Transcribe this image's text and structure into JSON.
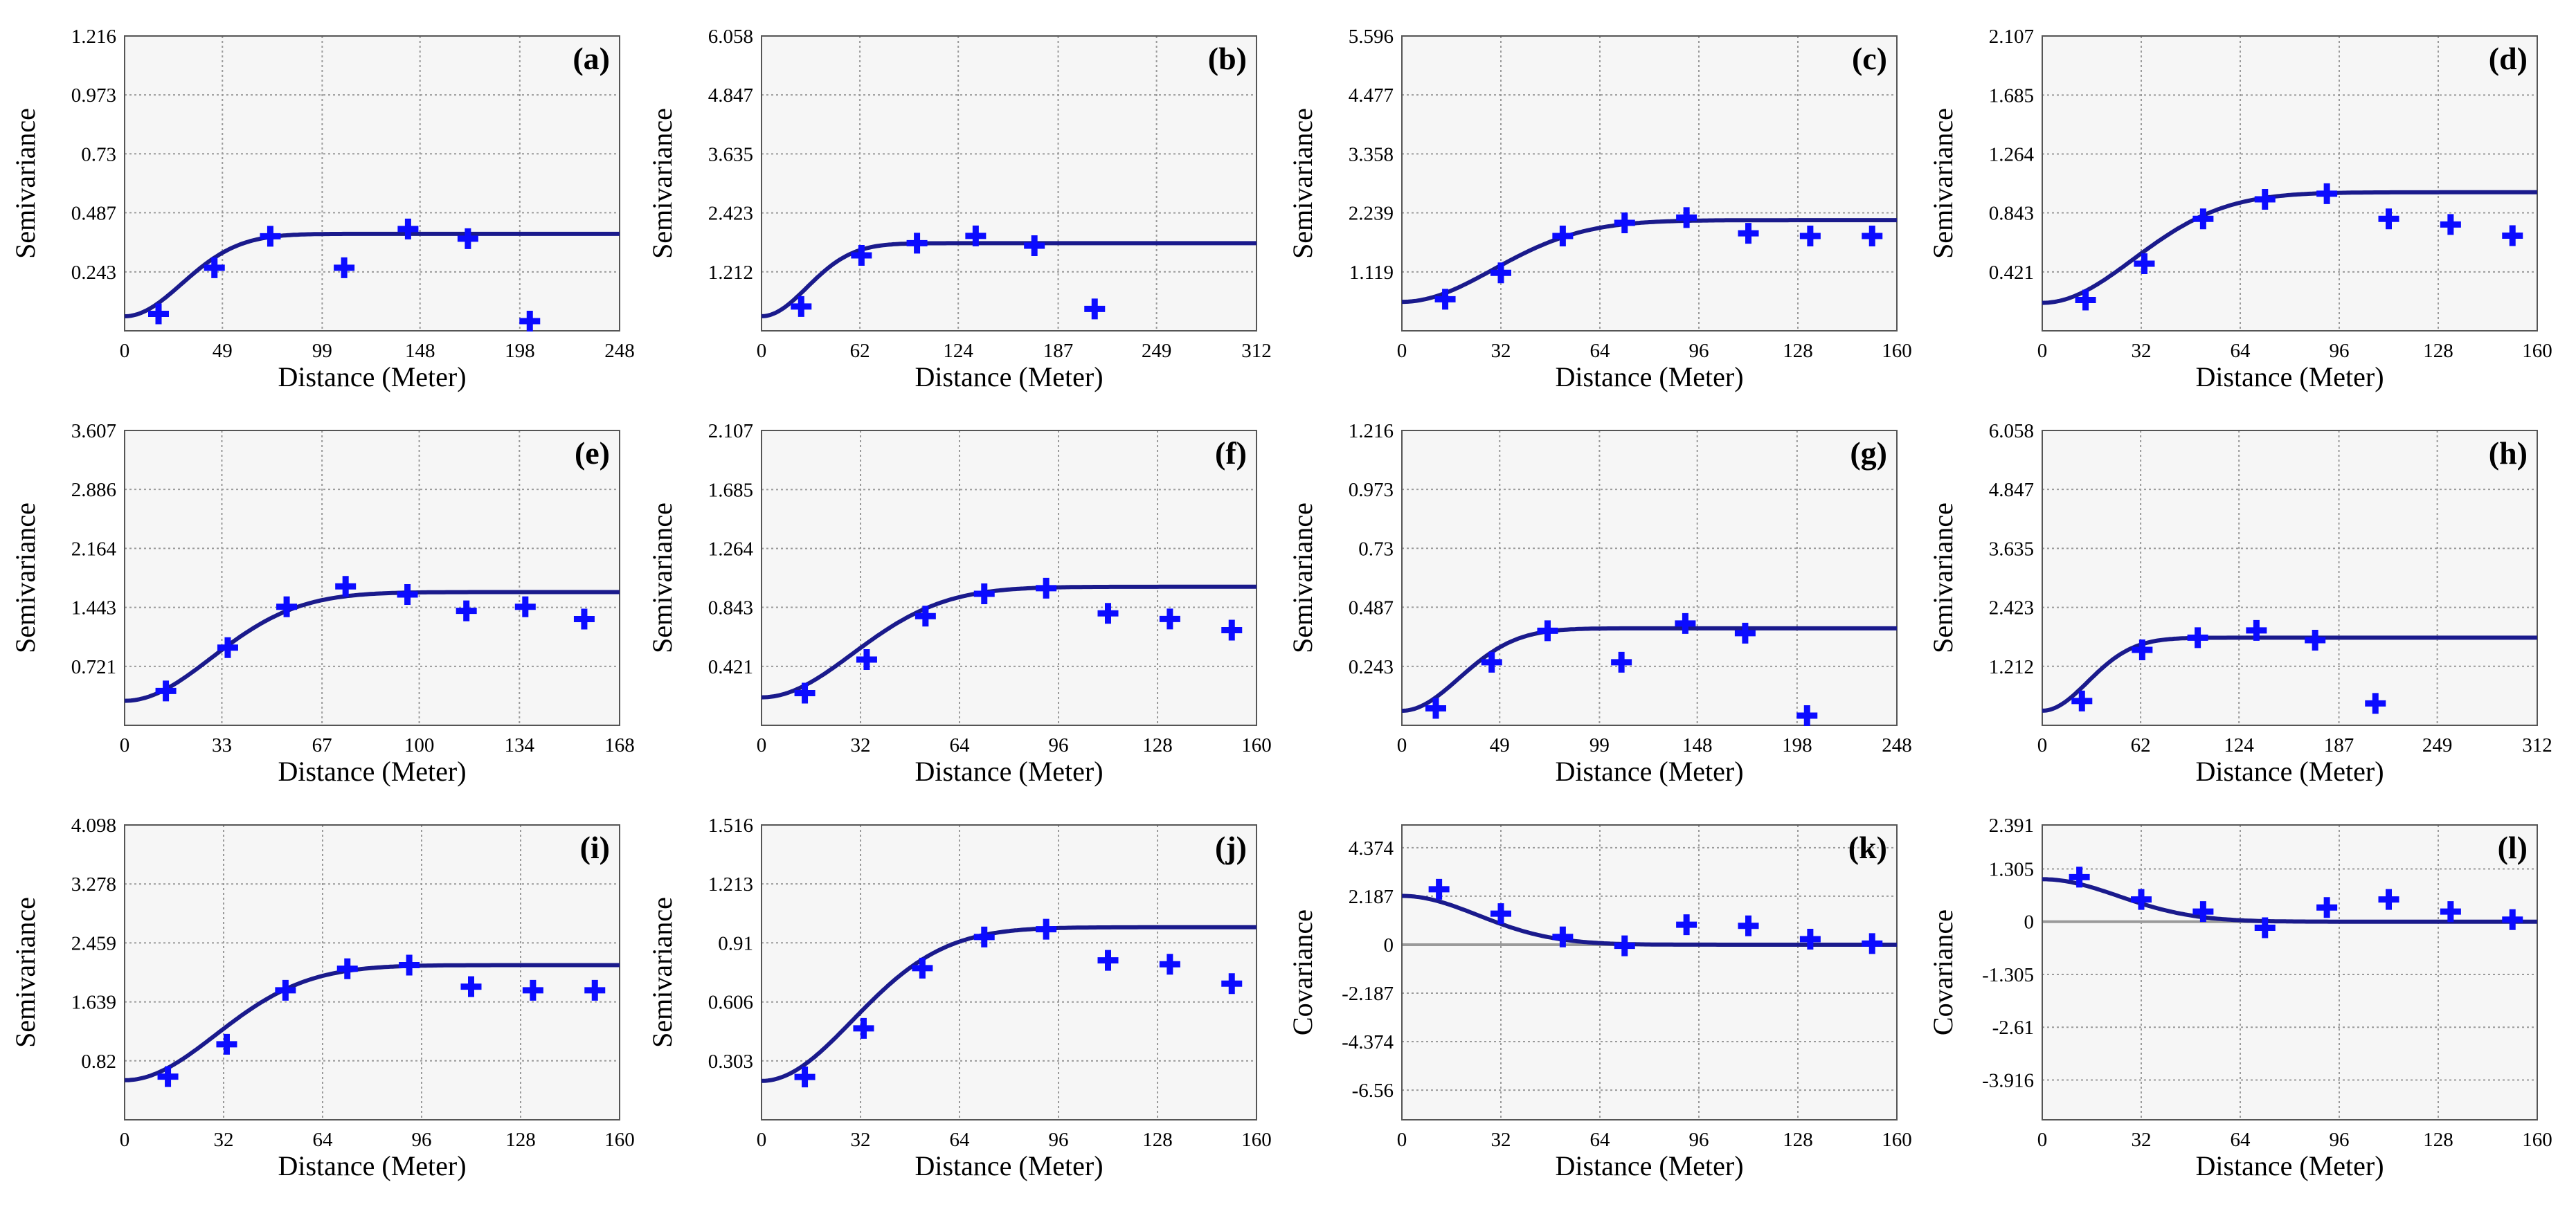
{
  "colors": {
    "model_line": "#1a1a8c",
    "points": "#0b0bff",
    "grid": "#9a9a9a",
    "plot_bg": "#f6f6f6",
    "zero_line": "#9a9a9a"
  },
  "chart_data": [
    {
      "panel": "(a)",
      "type": "scatter",
      "model": "gaussian",
      "xlabel": "Distance (Meter)",
      "ylabel": "Semivariance",
      "xticks": [
        "0",
        "49",
        "99",
        "148",
        "198",
        "248"
      ],
      "xlim": [
        0,
        248
      ],
      "yticks": [
        "0.243",
        "0.487",
        "0.73",
        "0.973",
        "1.216"
      ],
      "ylim": [
        0,
        1.216
      ],
      "grid": true,
      "nugget": 0.06,
      "sill": 0.4,
      "range": 70,
      "points": [
        [
          17,
          0.07
        ],
        [
          45,
          0.26
        ],
        [
          73,
          0.39
        ],
        [
          110,
          0.26
        ],
        [
          142,
          0.42
        ],
        [
          172,
          0.38
        ],
        [
          203,
          0.04
        ]
      ]
    },
    {
      "panel": "(b)",
      "type": "scatter",
      "model": "gaussian",
      "xlabel": "Distance (Meter)",
      "ylabel": "Semivariance",
      "xticks": [
        "0",
        "62",
        "124",
        "187",
        "249",
        "312"
      ],
      "xlim": [
        0,
        312
      ],
      "yticks": [
        "1.212",
        "2.423",
        "3.635",
        "4.847",
        "6.058"
      ],
      "ylim": [
        0,
        6.058
      ],
      "grid": true,
      "nugget": 0.3,
      "sill": 1.8,
      "range": 70,
      "points": [
        [
          25,
          0.5
        ],
        [
          63,
          1.55
        ],
        [
          98,
          1.8
        ],
        [
          135,
          1.95
        ],
        [
          172,
          1.75
        ],
        [
          210,
          0.45
        ]
      ]
    },
    {
      "panel": "(c)",
      "type": "scatter",
      "model": "gaussian",
      "xlabel": "Distance (Meter)",
      "ylabel": "Semivariance",
      "xticks": [
        "0",
        "32",
        "64",
        "96",
        "128",
        "160"
      ],
      "xlim": [
        0,
        160
      ],
      "yticks": [
        "1.119",
        "2.239",
        "3.358",
        "4.477",
        "5.596"
      ],
      "ylim": [
        0,
        5.596
      ],
      "grid": true,
      "nugget": 0.55,
      "sill": 2.1,
      "range": 72,
      "points": [
        [
          14,
          0.6
        ],
        [
          32,
          1.1
        ],
        [
          52,
          1.8
        ],
        [
          72,
          2.05
        ],
        [
          92,
          2.15
        ],
        [
          112,
          1.85
        ],
        [
          132,
          1.8
        ],
        [
          152,
          1.8
        ]
      ]
    },
    {
      "panel": "(d)",
      "type": "scatter",
      "model": "gaussian",
      "xlabel": "Distance (Meter)",
      "ylabel": "Semivariance",
      "xticks": [
        "0",
        "32",
        "64",
        "96",
        "128",
        "160"
      ],
      "xlim": [
        0,
        160
      ],
      "yticks": [
        "0.421",
        "0.843",
        "1.264",
        "1.685",
        "2.107"
      ],
      "ylim": [
        0,
        2.107
      ],
      "grid": true,
      "nugget": 0.2,
      "sill": 0.99,
      "range": 72,
      "points": [
        [
          14,
          0.22
        ],
        [
          33,
          0.48
        ],
        [
          52,
          0.8
        ],
        [
          72,
          0.94
        ],
        [
          92,
          0.98
        ],
        [
          112,
          0.8
        ],
        [
          132,
          0.76
        ],
        [
          152,
          0.68
        ]
      ]
    },
    {
      "panel": "(e)",
      "type": "scatter",
      "model": "gaussian",
      "xlabel": "Distance (Meter)",
      "ylabel": "Semivariance",
      "xticks": [
        "0",
        "33",
        "67",
        "100",
        "134",
        "168"
      ],
      "xlim": [
        0,
        168
      ],
      "yticks": [
        "0.721",
        "1.443",
        "2.164",
        "2.886",
        "3.607"
      ],
      "ylim": [
        0,
        3.607
      ],
      "grid": true,
      "nugget": 0.3,
      "sill": 1.63,
      "range": 72,
      "points": [
        [
          14,
          0.42
        ],
        [
          35,
          0.95
        ],
        [
          55,
          1.45
        ],
        [
          75,
          1.7
        ],
        [
          96,
          1.6
        ],
        [
          116,
          1.4
        ],
        [
          136,
          1.45
        ],
        [
          156,
          1.3
        ]
      ]
    },
    {
      "panel": "(f)",
      "type": "scatter",
      "model": "gaussian",
      "xlabel": "Distance (Meter)",
      "ylabel": "Semivariance",
      "xticks": [
        "0",
        "32",
        "64",
        "96",
        "128",
        "160"
      ],
      "xlim": [
        0,
        160
      ],
      "yticks": [
        "0.421",
        "0.843",
        "1.264",
        "1.685",
        "2.107"
      ],
      "ylim": [
        0,
        2.107
      ],
      "grid": true,
      "nugget": 0.2,
      "sill": 0.99,
      "range": 72,
      "points": [
        [
          14,
          0.23
        ],
        [
          34,
          0.47
        ],
        [
          53,
          0.78
        ],
        [
          72,
          0.94
        ],
        [
          92,
          0.98
        ],
        [
          112,
          0.8
        ],
        [
          132,
          0.76
        ],
        [
          152,
          0.68
        ]
      ]
    },
    {
      "panel": "(g)",
      "type": "scatter",
      "model": "gaussian",
      "xlabel": "Distance (Meter)",
      "ylabel": "Semivariance",
      "xticks": [
        "0",
        "49",
        "99",
        "148",
        "198",
        "248"
      ],
      "xlim": [
        0,
        248
      ],
      "yticks": [
        "0.243",
        "0.487",
        "0.73",
        "0.973",
        "1.216"
      ],
      "ylim": [
        0,
        1.216
      ],
      "grid": true,
      "nugget": 0.06,
      "sill": 0.4,
      "range": 70,
      "points": [
        [
          17,
          0.07
        ],
        [
          45,
          0.26
        ],
        [
          73,
          0.39
        ],
        [
          110,
          0.26
        ],
        [
          142,
          0.42
        ],
        [
          172,
          0.38
        ],
        [
          203,
          0.04
        ]
      ]
    },
    {
      "panel": "(h)",
      "type": "scatter",
      "model": "gaussian",
      "xlabel": "Distance (Meter)",
      "ylabel": "Semivariance",
      "xticks": [
        "0",
        "62",
        "124",
        "187",
        "249",
        "312"
      ],
      "xlim": [
        0,
        312
      ],
      "yticks": [
        "1.212",
        "2.423",
        "3.635",
        "4.847",
        "6.058"
      ],
      "ylim": [
        0,
        6.058
      ],
      "grid": true,
      "nugget": 0.3,
      "sill": 1.8,
      "range": 70,
      "points": [
        [
          25,
          0.5
        ],
        [
          63,
          1.55
        ],
        [
          98,
          1.8
        ],
        [
          135,
          1.95
        ],
        [
          172,
          1.75
        ],
        [
          210,
          0.45
        ]
      ]
    },
    {
      "panel": "(i)",
      "type": "scatter",
      "model": "gaussian",
      "xlabel": "Distance (Meter)",
      "ylabel": "Semivariance",
      "xticks": [
        "0",
        "32",
        "64",
        "96",
        "128",
        "160"
      ],
      "xlim": [
        0,
        160
      ],
      "yticks": [
        "0.82",
        "1.639",
        "2.459",
        "3.278",
        "4.098"
      ],
      "ylim": [
        0,
        4.098
      ],
      "grid": true,
      "nugget": 0.55,
      "sill": 2.15,
      "range": 72,
      "points": [
        [
          14,
          0.6
        ],
        [
          33,
          1.05
        ],
        [
          52,
          1.8
        ],
        [
          72,
          2.1
        ],
        [
          92,
          2.15
        ],
        [
          112,
          1.85
        ],
        [
          132,
          1.8
        ],
        [
          152,
          1.8
        ]
      ]
    },
    {
      "panel": "(j)",
      "type": "scatter",
      "model": "gaussian",
      "xlabel": "Distance (Meter)",
      "ylabel": "Semivariance",
      "xticks": [
        "0",
        "32",
        "64",
        "96",
        "128",
        "160"
      ],
      "xlim": [
        0,
        160
      ],
      "yticks": [
        "0.303",
        "0.606",
        "0.91",
        "1.213",
        "1.516"
      ],
      "ylim": [
        0,
        1.516
      ],
      "grid": true,
      "nugget": 0.2,
      "sill": 0.99,
      "range": 72,
      "points": [
        [
          14,
          0.22
        ],
        [
          33,
          0.47
        ],
        [
          52,
          0.78
        ],
        [
          72,
          0.94
        ],
        [
          92,
          0.98
        ],
        [
          112,
          0.82
        ],
        [
          132,
          0.8
        ],
        [
          152,
          0.7
        ]
      ]
    },
    {
      "panel": "(k)",
      "type": "scatter",
      "model": "gaussian_covariance",
      "xlabel": "Distance (Meter)",
      "ylabel": "Covariance",
      "xticks": [
        "0",
        "32",
        "64",
        "96",
        "128",
        "160"
      ],
      "xlim": [
        0,
        160
      ],
      "yticks": [
        "-6.56",
        "-4.374",
        "-2.187",
        "0",
        "2.187",
        "4.374"
      ],
      "ylim": [
        -7.9,
        5.4
      ],
      "grid": true,
      "sill": 2.2,
      "range": 60,
      "zero_line": true,
      "points": [
        [
          12,
          2.5
        ],
        [
          32,
          1.4
        ],
        [
          52,
          0.35
        ],
        [
          72,
          -0.05
        ],
        [
          92,
          0.9
        ],
        [
          112,
          0.85
        ],
        [
          132,
          0.25
        ],
        [
          152,
          0.05
        ]
      ]
    },
    {
      "panel": "(l)",
      "type": "scatter",
      "model": "gaussian_covariance",
      "xlabel": "Distance (Meter)",
      "ylabel": "Covariance",
      "xticks": [
        "0",
        "32",
        "64",
        "96",
        "128",
        "160"
      ],
      "xlim": [
        0,
        160
      ],
      "yticks": [
        "-3.916",
        "-2.61",
        "-1.305",
        "0",
        "1.305",
        "2.391"
      ],
      "ylim": [
        -4.9,
        2.391
      ],
      "grid": true,
      "sill": 1.05,
      "range": 60,
      "zero_line": true,
      "points": [
        [
          12,
          1.1
        ],
        [
          32,
          0.55
        ],
        [
          52,
          0.25
        ],
        [
          72,
          -0.15
        ],
        [
          92,
          0.35
        ],
        [
          112,
          0.55
        ],
        [
          132,
          0.25
        ],
        [
          152,
          0.05
        ]
      ]
    }
  ]
}
